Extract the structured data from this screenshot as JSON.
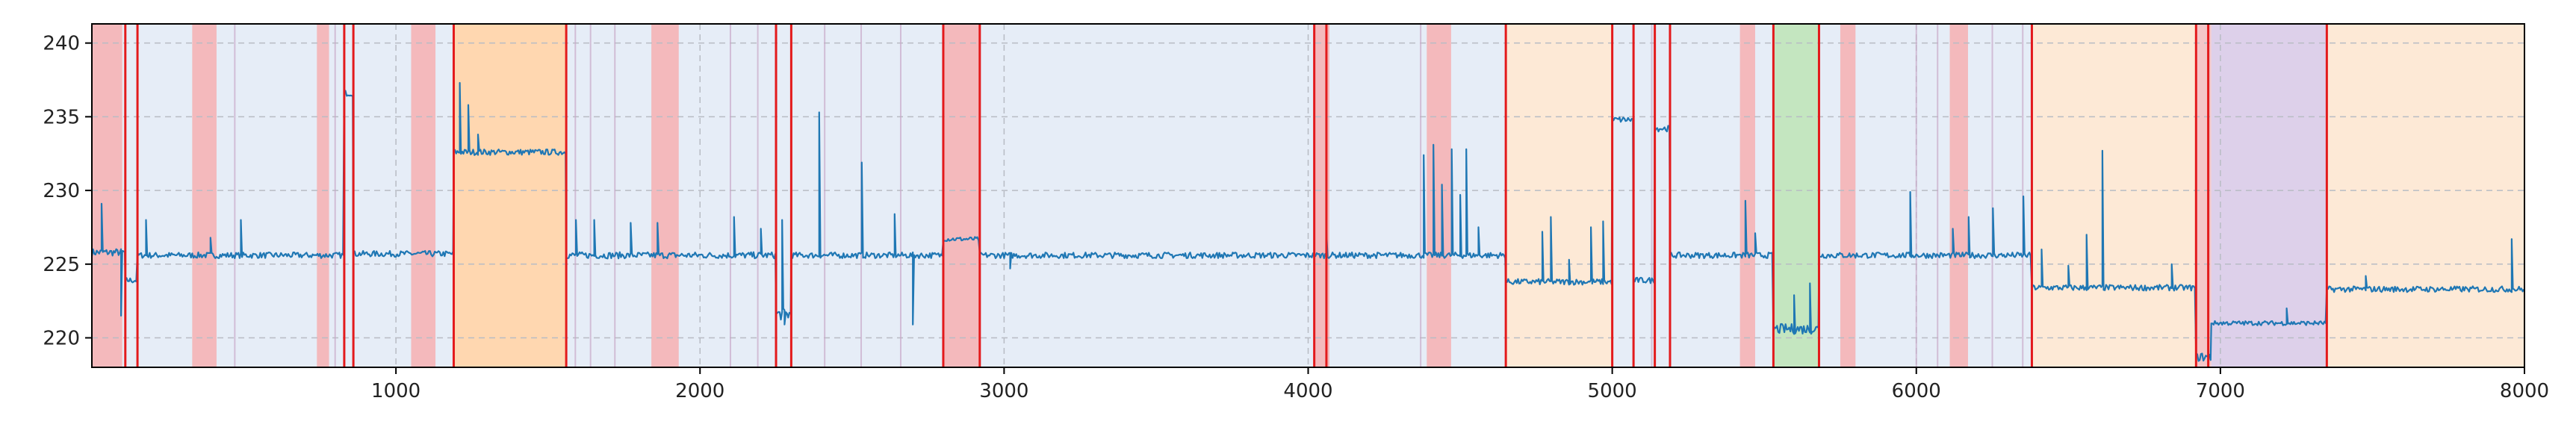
{
  "chart_data": {
    "type": "line",
    "title": "",
    "xlabel": "",
    "ylabel": "",
    "xlim": [
      0,
      8000
    ],
    "ylim": [
      218,
      241.3
    ],
    "x_ticks": [
      1000,
      2000,
      3000,
      4000,
      5000,
      6000,
      7000,
      8000
    ],
    "x_tick_labels": [
      "1000",
      "2000",
      "3000",
      "4000",
      "5000",
      "6000",
      "7000",
      "8000"
    ],
    "y_ticks": [
      220,
      225,
      230,
      235,
      240
    ],
    "y_tick_labels": [
      "220",
      "225",
      "230",
      "235",
      "240"
    ],
    "grid": true,
    "line_color": "#1f77b4",
    "background_regions": [
      {
        "x0": 0,
        "x1": 4650,
        "color": "#e6edf7"
      },
      {
        "x0": 1190,
        "x1": 1560,
        "color": "#ffd7b0"
      },
      {
        "x0": 4650,
        "x1": 5000,
        "color": "#fde9d6"
      },
      {
        "x0": 5000,
        "x1": 5190,
        "color": "#e6edf7"
      },
      {
        "x0": 5190,
        "x1": 5530,
        "color": "#e6edf7"
      },
      {
        "x0": 5530,
        "x1": 5680,
        "color": "#c4e6c0"
      },
      {
        "x0": 5680,
        "x1": 6380,
        "color": "#e6edf7"
      },
      {
        "x0": 6380,
        "x1": 6920,
        "color": "#fde9d6"
      },
      {
        "x0": 6920,
        "x1": 6970,
        "color": "#f4c6c8"
      },
      {
        "x0": 6970,
        "x1": 7350,
        "color": "#ddd0ea"
      },
      {
        "x0": 7350,
        "x1": 8000,
        "color": "#fde9d6"
      }
    ],
    "anomaly_bands": [
      {
        "x0": 0,
        "x1": 100
      },
      {
        "x0": 330,
        "x1": 410
      },
      {
        "x0": 740,
        "x1": 780
      },
      {
        "x0": 1050,
        "x1": 1130
      },
      {
        "x0": 1840,
        "x1": 1930
      },
      {
        "x0": 2800,
        "x1": 2920
      },
      {
        "x0": 4020,
        "x1": 4070
      },
      {
        "x0": 4390,
        "x1": 4470
      },
      {
        "x0": 5420,
        "x1": 5470
      },
      {
        "x0": 5750,
        "x1": 5800
      },
      {
        "x0": 6110,
        "x1": 6170
      }
    ],
    "faint_vlines": [
      470,
      800,
      1590,
      1640,
      1720,
      2100,
      2190,
      2410,
      2530,
      2660,
      4370,
      5130,
      6000,
      6070,
      6250,
      6350
    ],
    "red_vlines": [
      110,
      150,
      830,
      860,
      1190,
      1560,
      2250,
      2300,
      2800,
      2920,
      4020,
      4060,
      4650,
      5000,
      5070,
      5140,
      5190,
      5530,
      5680,
      6380,
      6920,
      6960,
      7350
    ],
    "series": [
      {
        "segments": [
          {
            "x0": 0,
            "x1": 110,
            "level": 225.8,
            "noise": 0.25
          },
          {
            "x0": 110,
            "x1": 150,
            "level": 223.9,
            "noise": 0.2
          },
          {
            "x0": 150,
            "x1": 830,
            "level": 225.6,
            "noise": 0.2
          },
          {
            "x0": 830,
            "x1": 860,
            "level": 236.6,
            "noise": 0.2
          },
          {
            "x0": 860,
            "x1": 1190,
            "level": 225.7,
            "noise": 0.2
          },
          {
            "x0": 1190,
            "x1": 1560,
            "level": 232.6,
            "noise": 0.2
          },
          {
            "x0": 1560,
            "x1": 2250,
            "level": 225.6,
            "noise": 0.22
          },
          {
            "x0": 2250,
            "x1": 2300,
            "level": 221.6,
            "noise": 0.4
          },
          {
            "x0": 2300,
            "x1": 2800,
            "level": 225.6,
            "noise": 0.2
          },
          {
            "x0": 2800,
            "x1": 2920,
            "level": 226.7,
            "noise": 0.15
          },
          {
            "x0": 2920,
            "x1": 4650,
            "level": 225.6,
            "noise": 0.2
          },
          {
            "x0": 4650,
            "x1": 5000,
            "level": 223.8,
            "noise": 0.2
          },
          {
            "x0": 5000,
            "x1": 5070,
            "level": 234.8,
            "noise": 0.2
          },
          {
            "x0": 5070,
            "x1": 5140,
            "level": 223.9,
            "noise": 0.2
          },
          {
            "x0": 5140,
            "x1": 5190,
            "level": 234.2,
            "noise": 0.2
          },
          {
            "x0": 5190,
            "x1": 5530,
            "level": 225.6,
            "noise": 0.2
          },
          {
            "x0": 5530,
            "x1": 5680,
            "level": 220.6,
            "noise": 0.35
          },
          {
            "x0": 5680,
            "x1": 6380,
            "level": 225.6,
            "noise": 0.2
          },
          {
            "x0": 6380,
            "x1": 6920,
            "level": 223.4,
            "noise": 0.2
          },
          {
            "x0": 6920,
            "x1": 6970,
            "level": 218.7,
            "noise": 0.3
          },
          {
            "x0": 6970,
            "x1": 7350,
            "level": 221.0,
            "noise": 0.15
          },
          {
            "x0": 7350,
            "x1": 8000,
            "level": 223.3,
            "noise": 0.2
          }
        ],
        "spikes": [
          {
            "x": 30,
            "y": 229.1
          },
          {
            "x": 95,
            "y": 221.5
          },
          {
            "x": 180,
            "y": 228.0
          },
          {
            "x": 390,
            "y": 226.8
          },
          {
            "x": 490,
            "y": 228.0
          },
          {
            "x": 1210,
            "y": 237.3
          },
          {
            "x": 1240,
            "y": 235.8
          },
          {
            "x": 1270,
            "y": 233.8
          },
          {
            "x": 1590,
            "y": 228.0
          },
          {
            "x": 1650,
            "y": 228.0
          },
          {
            "x": 1770,
            "y": 227.8
          },
          {
            "x": 1860,
            "y": 227.8
          },
          {
            "x": 2110,
            "y": 228.2
          },
          {
            "x": 2200,
            "y": 227.4
          },
          {
            "x": 2270,
            "y": 228.0
          },
          {
            "x": 2280,
            "y": 220.9
          },
          {
            "x": 2390,
            "y": 235.3
          },
          {
            "x": 2530,
            "y": 231.9
          },
          {
            "x": 2640,
            "y": 228.4
          },
          {
            "x": 2700,
            "y": 220.9
          },
          {
            "x": 3020,
            "y": 224.7
          },
          {
            "x": 4060,
            "y": 227.2
          },
          {
            "x": 4380,
            "y": 232.4
          },
          {
            "x": 4410,
            "y": 233.1
          },
          {
            "x": 4440,
            "y": 230.4
          },
          {
            "x": 4470,
            "y": 232.8
          },
          {
            "x": 4500,
            "y": 229.7
          },
          {
            "x": 4520,
            "y": 232.8
          },
          {
            "x": 4560,
            "y": 227.5
          },
          {
            "x": 4770,
            "y": 227.2
          },
          {
            "x": 4800,
            "y": 228.2
          },
          {
            "x": 4860,
            "y": 225.3
          },
          {
            "x": 4930,
            "y": 227.5
          },
          {
            "x": 4970,
            "y": 227.9
          },
          {
            "x": 5440,
            "y": 229.3
          },
          {
            "x": 5470,
            "y": 227.1
          },
          {
            "x": 5600,
            "y": 222.9
          },
          {
            "x": 5650,
            "y": 223.7
          },
          {
            "x": 5980,
            "y": 229.9
          },
          {
            "x": 6120,
            "y": 227.4
          },
          {
            "x": 6170,
            "y": 228.2
          },
          {
            "x": 6250,
            "y": 228.8
          },
          {
            "x": 6350,
            "y": 229.6
          },
          {
            "x": 6410,
            "y": 226.0
          },
          {
            "x": 6500,
            "y": 224.9
          },
          {
            "x": 6560,
            "y": 227.0
          },
          {
            "x": 6610,
            "y": 232.7
          },
          {
            "x": 6840,
            "y": 225.0
          },
          {
            "x": 7220,
            "y": 222.0
          },
          {
            "x": 7480,
            "y": 224.2
          },
          {
            "x": 7960,
            "y": 226.7
          }
        ]
      }
    ]
  }
}
